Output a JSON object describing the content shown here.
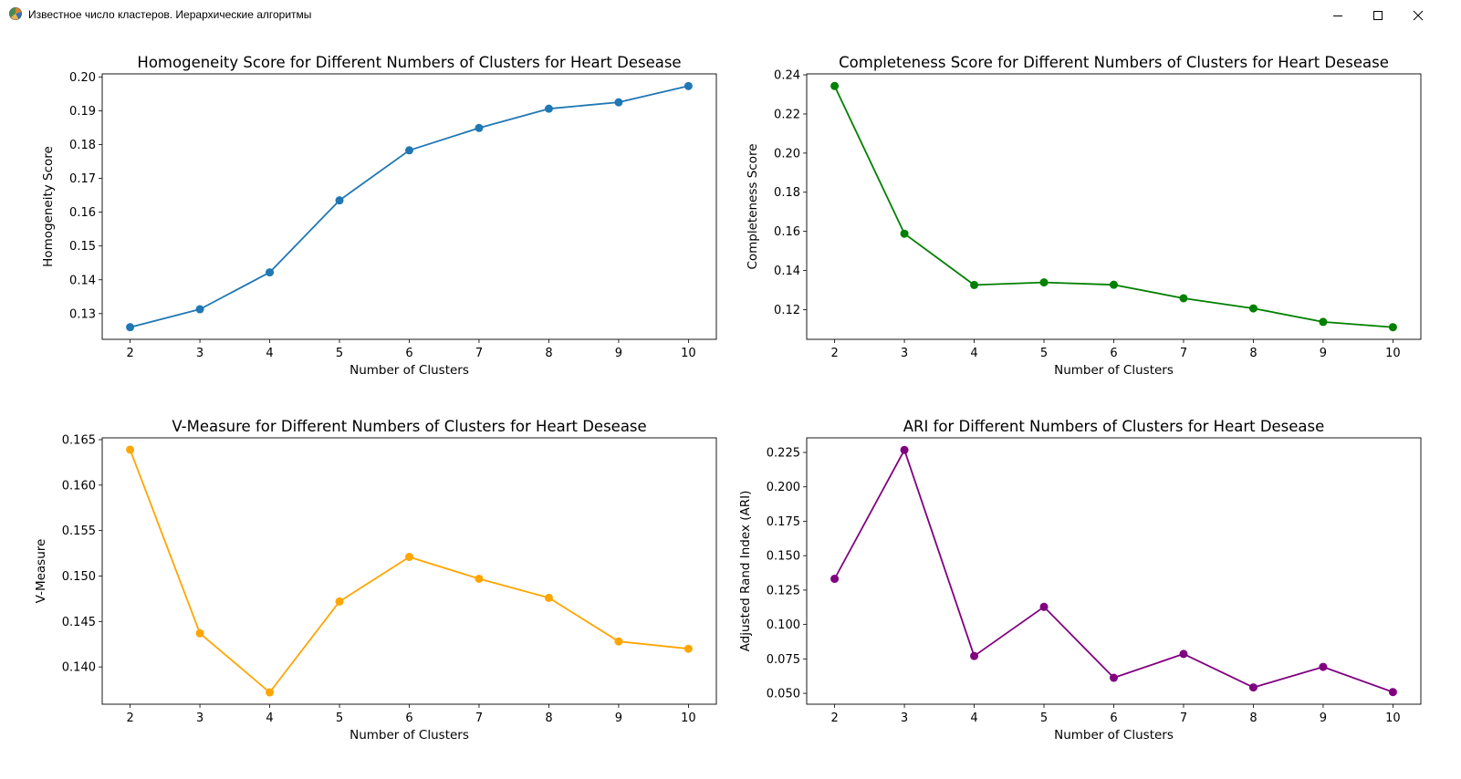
{
  "window": {
    "title": "Известное число кластеров. Иерархические алгоритмы",
    "app_icon": "matplotlib-figure-icon",
    "controls": [
      "minimize-icon",
      "maximize-icon",
      "close-icon"
    ]
  },
  "chart_data": [
    {
      "type": "line",
      "title": "Homogeneity Score for Different Numbers of Clusters for Heart Desease",
      "xlabel": "Number of Clusters",
      "ylabel": "Homogeneity Score",
      "x": [
        2,
        3,
        4,
        5,
        6,
        7,
        8,
        9,
        10
      ],
      "series": [
        {
          "values": [
            0.126,
            0.1313,
            0.1422,
            0.1635,
            0.1783,
            0.1849,
            0.1906,
            0.1925,
            0.1973
          ]
        }
      ],
      "color": "#1f77b4",
      "xticks": [
        2,
        3,
        4,
        5,
        6,
        7,
        8,
        9,
        10
      ],
      "yticks": [
        0.13,
        0.14,
        0.15,
        0.16,
        0.17,
        0.18,
        0.19,
        0.2
      ],
      "ytick_labels": [
        "0.13",
        "0.14",
        "0.15",
        "0.16",
        "0.17",
        "0.18",
        "0.19",
        "0.20"
      ],
      "xlim": [
        1.6,
        10.4
      ],
      "ylim": [
        0.1224,
        0.2009
      ],
      "grid": false,
      "legend": false
    },
    {
      "type": "line",
      "title": "Completeness Score for Different Numbers of Clusters for Heart Desease",
      "xlabel": "Number of Clusters",
      "ylabel": "Completeness Score",
      "x": [
        2,
        3,
        4,
        5,
        6,
        7,
        8,
        9,
        10
      ],
      "series": [
        {
          "values": [
            0.2343,
            0.1588,
            0.1326,
            0.1339,
            0.1327,
            0.1258,
            0.1206,
            0.1137,
            0.111
          ]
        }
      ],
      "color": "#008000",
      "xticks": [
        2,
        3,
        4,
        5,
        6,
        7,
        8,
        9,
        10
      ],
      "yticks": [
        0.12,
        0.14,
        0.16,
        0.18,
        0.2,
        0.22,
        0.24
      ],
      "ytick_labels": [
        "0.12",
        "0.14",
        "0.16",
        "0.18",
        "0.20",
        "0.22",
        "0.24"
      ],
      "xlim": [
        1.6,
        10.4
      ],
      "ylim": [
        0.1048,
        0.2405
      ],
      "grid": false,
      "legend": false
    },
    {
      "type": "line",
      "title": "V-Measure for Different Numbers of Clusters for Heart Desease",
      "xlabel": "Number of Clusters",
      "ylabel": "V-Measure",
      "x": [
        2,
        3,
        4,
        5,
        6,
        7,
        8,
        9,
        10
      ],
      "series": [
        {
          "values": [
            0.1639,
            0.1437,
            0.1372,
            0.1472,
            0.1521,
            0.1497,
            0.1476,
            0.1428,
            0.142
          ]
        }
      ],
      "color": "#ffa500",
      "xticks": [
        2,
        3,
        4,
        5,
        6,
        7,
        8,
        9,
        10
      ],
      "yticks": [
        0.14,
        0.145,
        0.15,
        0.155,
        0.16,
        0.165
      ],
      "ytick_labels": [
        "0.140",
        "0.145",
        "0.150",
        "0.155",
        "0.160",
        "0.165"
      ],
      "xlim": [
        1.6,
        10.4
      ],
      "ylim": [
        0.1359,
        0.1652
      ],
      "grid": false,
      "legend": false
    },
    {
      "type": "line",
      "title": "ARI for Different Numbers of Clusters for Heart Desease",
      "xlabel": "Number of Clusters",
      "ylabel": "Adjusted Rand Index (ARI)",
      "x": [
        2,
        3,
        4,
        5,
        6,
        7,
        8,
        9,
        10
      ],
      "series": [
        {
          "values": [
            0.1332,
            0.2268,
            0.0771,
            0.1128,
            0.0613,
            0.0786,
            0.0543,
            0.0692,
            0.0509
          ]
        }
      ],
      "color": "#800080",
      "xticks": [
        2,
        3,
        4,
        5,
        6,
        7,
        8,
        9,
        10
      ],
      "yticks": [
        0.05,
        0.075,
        0.1,
        0.125,
        0.15,
        0.175,
        0.2,
        0.225
      ],
      "ytick_labels": [
        "0.050",
        "0.075",
        "0.100",
        "0.125",
        "0.150",
        "0.175",
        "0.200",
        "0.225"
      ],
      "xlim": [
        1.6,
        10.4
      ],
      "ylim": [
        0.0421,
        0.2356
      ],
      "grid": false,
      "legend": false
    }
  ]
}
